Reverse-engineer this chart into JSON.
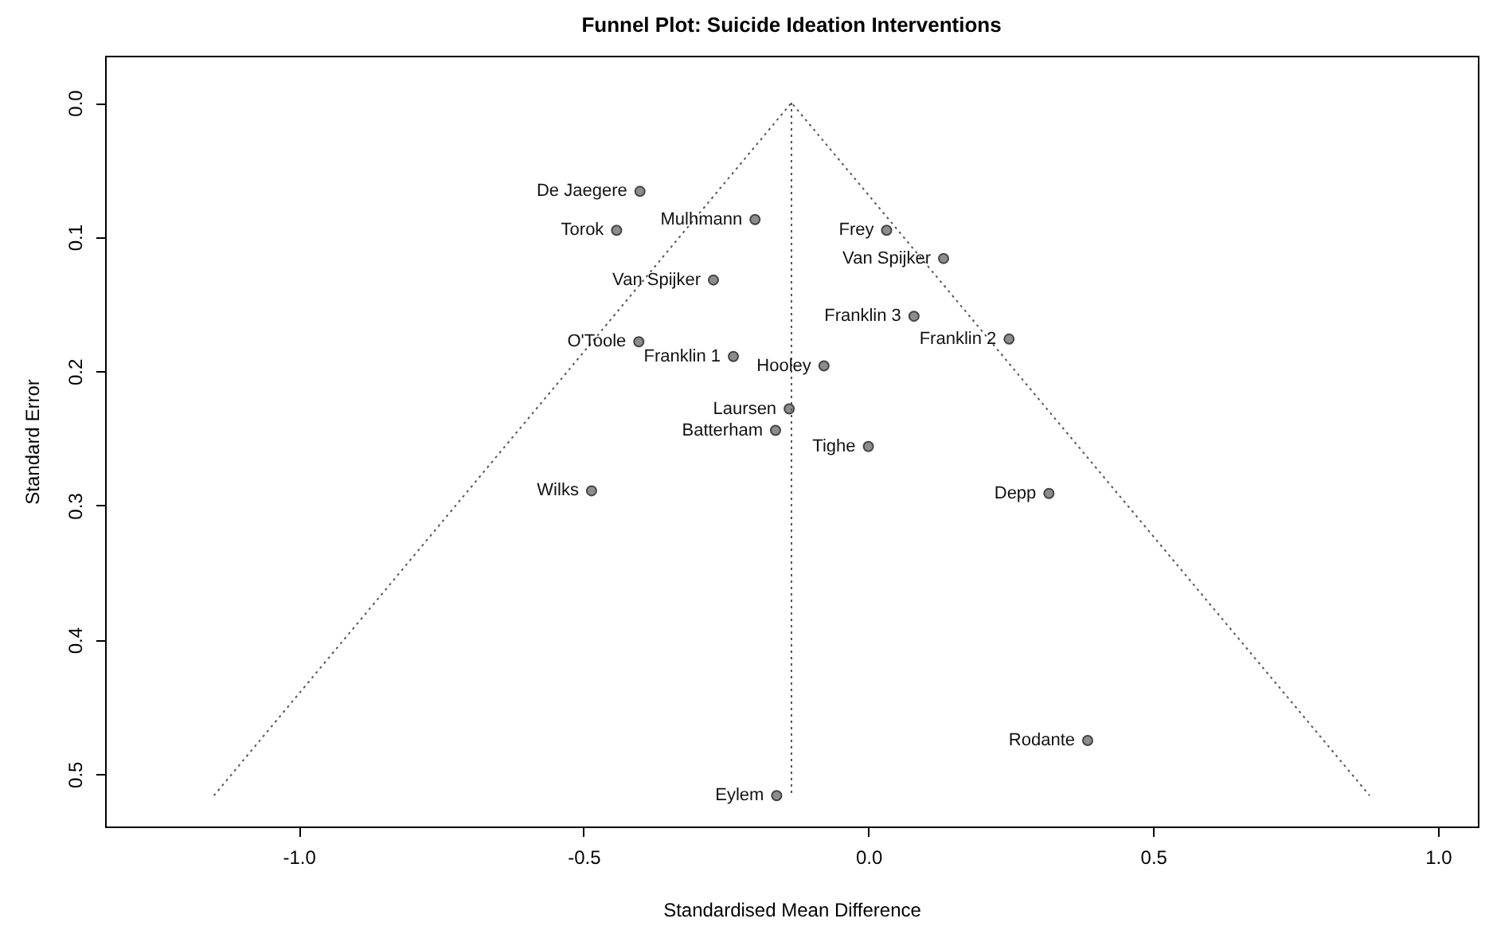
{
  "chart_data": {
    "type": "scatter",
    "title": "Funnel Plot: Suicide Ideation Interventions",
    "xlabel": "Standardised Mean Difference",
    "ylabel": "Standard Error",
    "xlim": [
      -1.34,
      1.07
    ],
    "xticks": [
      {
        "value": -1,
        "label": "-1.0"
      },
      -0.5,
      {
        "value": 0,
        "label": "0.0"
      },
      0.5,
      {
        "value": 1,
        "label": "1.0"
      }
    ],
    "ylim": [
      0.539,
      -0.035
    ],
    "yticks": [
      {
        "value": 0,
        "label": "0.0"
      },
      0.1,
      0.2,
      0.3,
      0.4,
      0.5
    ],
    "grid": false,
    "series": [
      {
        "marker": "circle",
        "color": "#8c8c8c",
        "x": [
          -0.401,
          -0.442,
          -0.199,
          -0.272,
          -0.403,
          -0.237,
          -0.139,
          -0.163,
          -0.486,
          0.032,
          0.132,
          0.08,
          0.247,
          -0.078,
          0.0,
          0.317,
          0.385,
          -0.161
        ],
        "values": [
          0.066,
          0.095,
          0.087,
          0.132,
          0.178,
          0.189,
          0.228,
          0.244,
          0.289,
          0.095,
          0.116,
          0.159,
          0.176,
          0.196,
          0.256,
          0.291,
          0.475,
          0.516
        ]
      },
      {
        "type": "line",
        "color": "#555555",
        "line_style": "dotted",
        "x": [
          -1.149,
          -0.135,
          0.88
        ],
        "values": [
          0.516,
          0,
          0.516
        ]
      },
      {
        "type": "line",
        "color": "#555555",
        "line_style": "dotted",
        "x": [
          -0.135,
          -0.135
        ],
        "values": [
          0,
          0.516
        ]
      }
    ],
    "annotations": [
      {
        "text": "De Jaegere",
        "x": -0.401,
        "y": 0.066
      },
      {
        "text": "Torok",
        "x": -0.442,
        "y": 0.095
      },
      {
        "text": "Mulhmann",
        "x": -0.199,
        "y": 0.087
      },
      {
        "text": "Van Spijker",
        "x": -0.272,
        "y": 0.132
      },
      {
        "text": "O'Toole",
        "x": -0.403,
        "y": 0.178
      },
      {
        "text": "Franklin 1",
        "x": -0.237,
        "y": 0.189
      },
      {
        "text": "Laursen",
        "x": -0.139,
        "y": 0.228
      },
      {
        "text": "Batterham",
        "x": -0.163,
        "y": 0.244
      },
      {
        "text": "Wilks",
        "x": -0.486,
        "y": 0.289
      },
      {
        "text": "Frey",
        "x": 0.032,
        "y": 0.095
      },
      {
        "text": "Van Spijker",
        "x": 0.132,
        "y": 0.116
      },
      {
        "text": "Franklin 3",
        "x": 0.08,
        "y": 0.159
      },
      {
        "text": "Franklin 2",
        "x": 0.247,
        "y": 0.176
      },
      {
        "text": "Hooley",
        "x": -0.078,
        "y": 0.196
      },
      {
        "text": "Tighe",
        "x": 0.0,
        "y": 0.256
      },
      {
        "text": "Depp",
        "x": 0.317,
        "y": 0.291
      },
      {
        "text": "Rodante",
        "x": 0.385,
        "y": 0.475
      },
      {
        "text": "Eylem",
        "x": -0.161,
        "y": 0.516
      }
    ]
  }
}
